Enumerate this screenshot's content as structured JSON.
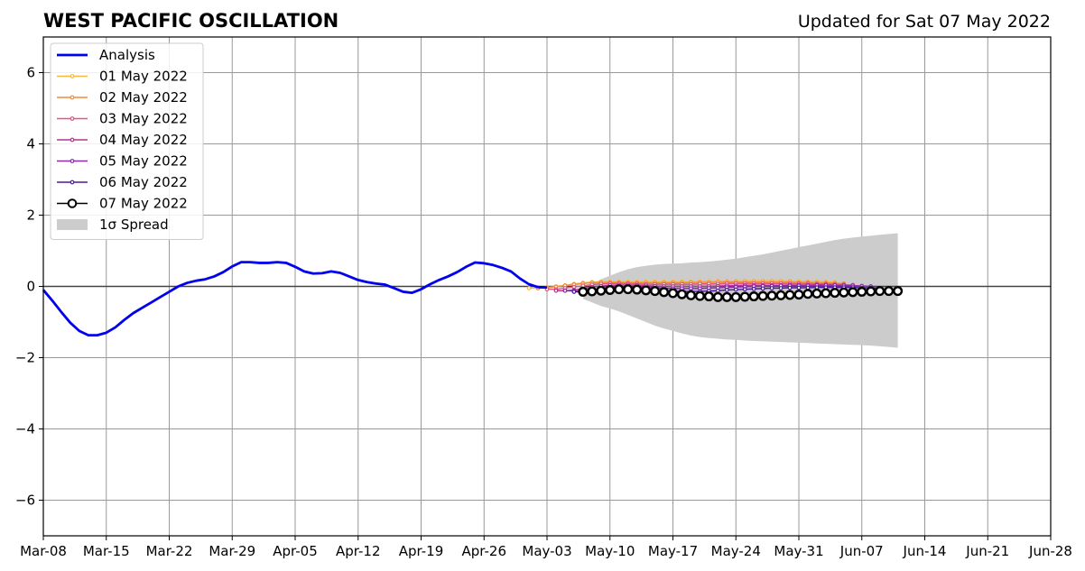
{
  "chart_data": {
    "type": "line",
    "title": "WEST PACIFIC OSCILLATION",
    "subtitle": "Updated for Sat 07 May 2022",
    "xlabel": "",
    "ylabel": "",
    "x_tick_labels": [
      "Mar-08",
      "Mar-15",
      "Mar-22",
      "Mar-29",
      "Apr-05",
      "Apr-12",
      "Apr-19",
      "Apr-26",
      "May-03",
      "May-10",
      "May-17",
      "May-24",
      "May-31",
      "Jun-07",
      "Jun-14",
      "Jun-21",
      "Jun-28"
    ],
    "y_ticks": [
      -6,
      -4,
      -2,
      0,
      2,
      4,
      6
    ],
    "y_tick_labels": [
      "−6",
      "−4",
      "−2",
      "0",
      "2",
      "4",
      "6"
    ],
    "xlim": [
      "2022-03-08",
      "2022-06-28"
    ],
    "ylim": [
      -7,
      7
    ],
    "grid": true,
    "legend_position": "top-left",
    "analysis": {
      "name": "Analysis",
      "color": "#0000ee",
      "start": "2022-03-08",
      "values": [
        -0.1,
        -0.4,
        -0.72,
        -1.02,
        -1.25,
        -1.37,
        -1.37,
        -1.3,
        -1.15,
        -0.94,
        -0.75,
        -0.6,
        -0.45,
        -0.3,
        -0.15,
        0.0,
        0.1,
        0.16,
        0.2,
        0.28,
        0.4,
        0.56,
        0.68,
        0.68,
        0.66,
        0.66,
        0.68,
        0.66,
        0.55,
        0.42,
        0.36,
        0.37,
        0.42,
        0.38,
        0.28,
        0.18,
        0.12,
        0.08,
        0.05,
        -0.05,
        -0.15,
        -0.18,
        -0.08,
        0.06,
        0.18,
        0.28,
        0.4,
        0.55,
        0.67,
        0.65,
        0.6,
        0.52,
        0.42,
        0.22,
        0.06,
        -0.02,
        -0.03
      ]
    },
    "forecasts": [
      {
        "name": "01 May 2022",
        "color": "#f5b942",
        "start": "2022-05-01",
        "values": [
          -0.05,
          -0.05,
          -0.03,
          0.0,
          0.03,
          0.07,
          0.1,
          0.12,
          0.13,
          0.13,
          0.13,
          0.13,
          0.13,
          0.13,
          0.13,
          0.13,
          0.13,
          0.13,
          0.13,
          0.14,
          0.15,
          0.15,
          0.15,
          0.15,
          0.16,
          0.16,
          0.16,
          0.16,
          0.16,
          0.15,
          0.15,
          0.14,
          0.14,
          0.13,
          0.12
        ]
      },
      {
        "name": "02 May 2022",
        "color": "#ef8b3e",
        "start": "2022-05-02",
        "values": [
          -0.05,
          -0.04,
          -0.01,
          0.02,
          0.05,
          0.08,
          0.1,
          0.11,
          0.11,
          0.11,
          0.1,
          0.1,
          0.1,
          0.1,
          0.1,
          0.1,
          0.1,
          0.11,
          0.11,
          0.11,
          0.12,
          0.12,
          0.12,
          0.12,
          0.12,
          0.12,
          0.12,
          0.12,
          0.12,
          0.11,
          0.11,
          0.1,
          0.1,
          0.09,
          0.08
        ]
      },
      {
        "name": "03 May 2022",
        "color": "#e0577b",
        "start": "2022-05-03",
        "values": [
          -0.08,
          -0.08,
          -0.05,
          -0.02,
          0.02,
          0.05,
          0.07,
          0.08,
          0.08,
          0.08,
          0.07,
          0.06,
          0.06,
          0.06,
          0.06,
          0.06,
          0.06,
          0.07,
          0.07,
          0.07,
          0.08,
          0.08,
          0.08,
          0.08,
          0.08,
          0.08,
          0.08,
          0.08,
          0.08,
          0.08,
          0.07,
          0.07,
          0.06,
          0.05,
          0.04
        ]
      },
      {
        "name": "04 May 2022",
        "color": "#b33494",
        "start": "2022-05-04",
        "values": [
          -0.12,
          -0.12,
          -0.1,
          -0.06,
          -0.02,
          0.01,
          0.03,
          0.04,
          0.04,
          0.03,
          0.02,
          0.01,
          0.0,
          0.0,
          0.0,
          0.0,
          0.0,
          0.0,
          0.01,
          0.02,
          0.02,
          0.03,
          0.03,
          0.03,
          0.03,
          0.03,
          0.04,
          0.04,
          0.04,
          0.04,
          0.04,
          0.03,
          0.03,
          0.02,
          0.01
        ]
      },
      {
        "name": "05 May 2022",
        "color": "#8a2aa8",
        "start": "2022-05-05",
        "values": [
          -0.12,
          -0.13,
          -0.13,
          -0.1,
          -0.06,
          -0.03,
          -0.01,
          -0.01,
          -0.02,
          -0.03,
          -0.04,
          -0.05,
          -0.06,
          -0.06,
          -0.06,
          -0.06,
          -0.05,
          -0.04,
          -0.03,
          -0.02,
          -0.01,
          0.0,
          0.01,
          0.01,
          0.02,
          0.02,
          0.02,
          0.02,
          0.03,
          0.03,
          0.03,
          0.02,
          0.02,
          0.01,
          0.0
        ]
      },
      {
        "name": "06 May 2022",
        "color": "#4b1a9c",
        "start": "2022-05-06",
        "values": [
          -0.15,
          -0.16,
          -0.16,
          -0.14,
          -0.12,
          -0.1,
          -0.09,
          -0.1,
          -0.11,
          -0.12,
          -0.13,
          -0.14,
          -0.14,
          -0.14,
          -0.14,
          -0.13,
          -0.12,
          -0.1,
          -0.09,
          -0.08,
          -0.07,
          -0.06,
          -0.05,
          -0.05,
          -0.04,
          -0.04,
          -0.04,
          -0.03,
          -0.03,
          -0.03,
          -0.03,
          -0.03,
          -0.04,
          -0.04,
          -0.05
        ]
      },
      {
        "name": "07 May 2022",
        "color": "#000000",
        "start": "2022-05-07",
        "values": [
          -0.15,
          -0.14,
          -0.12,
          -0.1,
          -0.08,
          -0.08,
          -0.09,
          -0.11,
          -0.13,
          -0.16,
          -0.19,
          -0.22,
          -0.25,
          -0.27,
          -0.28,
          -0.3,
          -0.3,
          -0.3,
          -0.29,
          -0.28,
          -0.27,
          -0.26,
          -0.25,
          -0.24,
          -0.23,
          -0.21,
          -0.2,
          -0.19,
          -0.18,
          -0.17,
          -0.16,
          -0.15,
          -0.14,
          -0.13,
          -0.13,
          -0.13
        ]
      }
    ],
    "spread": {
      "name": "1σ Spread",
      "color": "#cccccc",
      "start": "2022-05-07",
      "upper": [
        -0.05,
        0.05,
        0.2,
        0.3,
        0.4,
        0.48,
        0.54,
        0.58,
        0.61,
        0.63,
        0.64,
        0.65,
        0.67,
        0.68,
        0.7,
        0.72,
        0.75,
        0.78,
        0.82,
        0.86,
        0.9,
        0.95,
        1.0,
        1.05,
        1.1,
        1.15,
        1.2,
        1.25,
        1.3,
        1.34,
        1.37,
        1.4,
        1.42,
        1.45,
        1.47,
        1.49
      ],
      "lower": [
        -0.35,
        -0.45,
        -0.55,
        -0.62,
        -0.7,
        -0.8,
        -0.9,
        -1.0,
        -1.1,
        -1.18,
        -1.25,
        -1.32,
        -1.38,
        -1.42,
        -1.45,
        -1.47,
        -1.49,
        -1.5,
        -1.52,
        -1.53,
        -1.54,
        -1.55,
        -1.56,
        -1.57,
        -1.58,
        -1.59,
        -1.6,
        -1.61,
        -1.62,
        -1.63,
        -1.64,
        -1.65,
        -1.66,
        -1.68,
        -1.7,
        -1.72
      ]
    }
  }
}
